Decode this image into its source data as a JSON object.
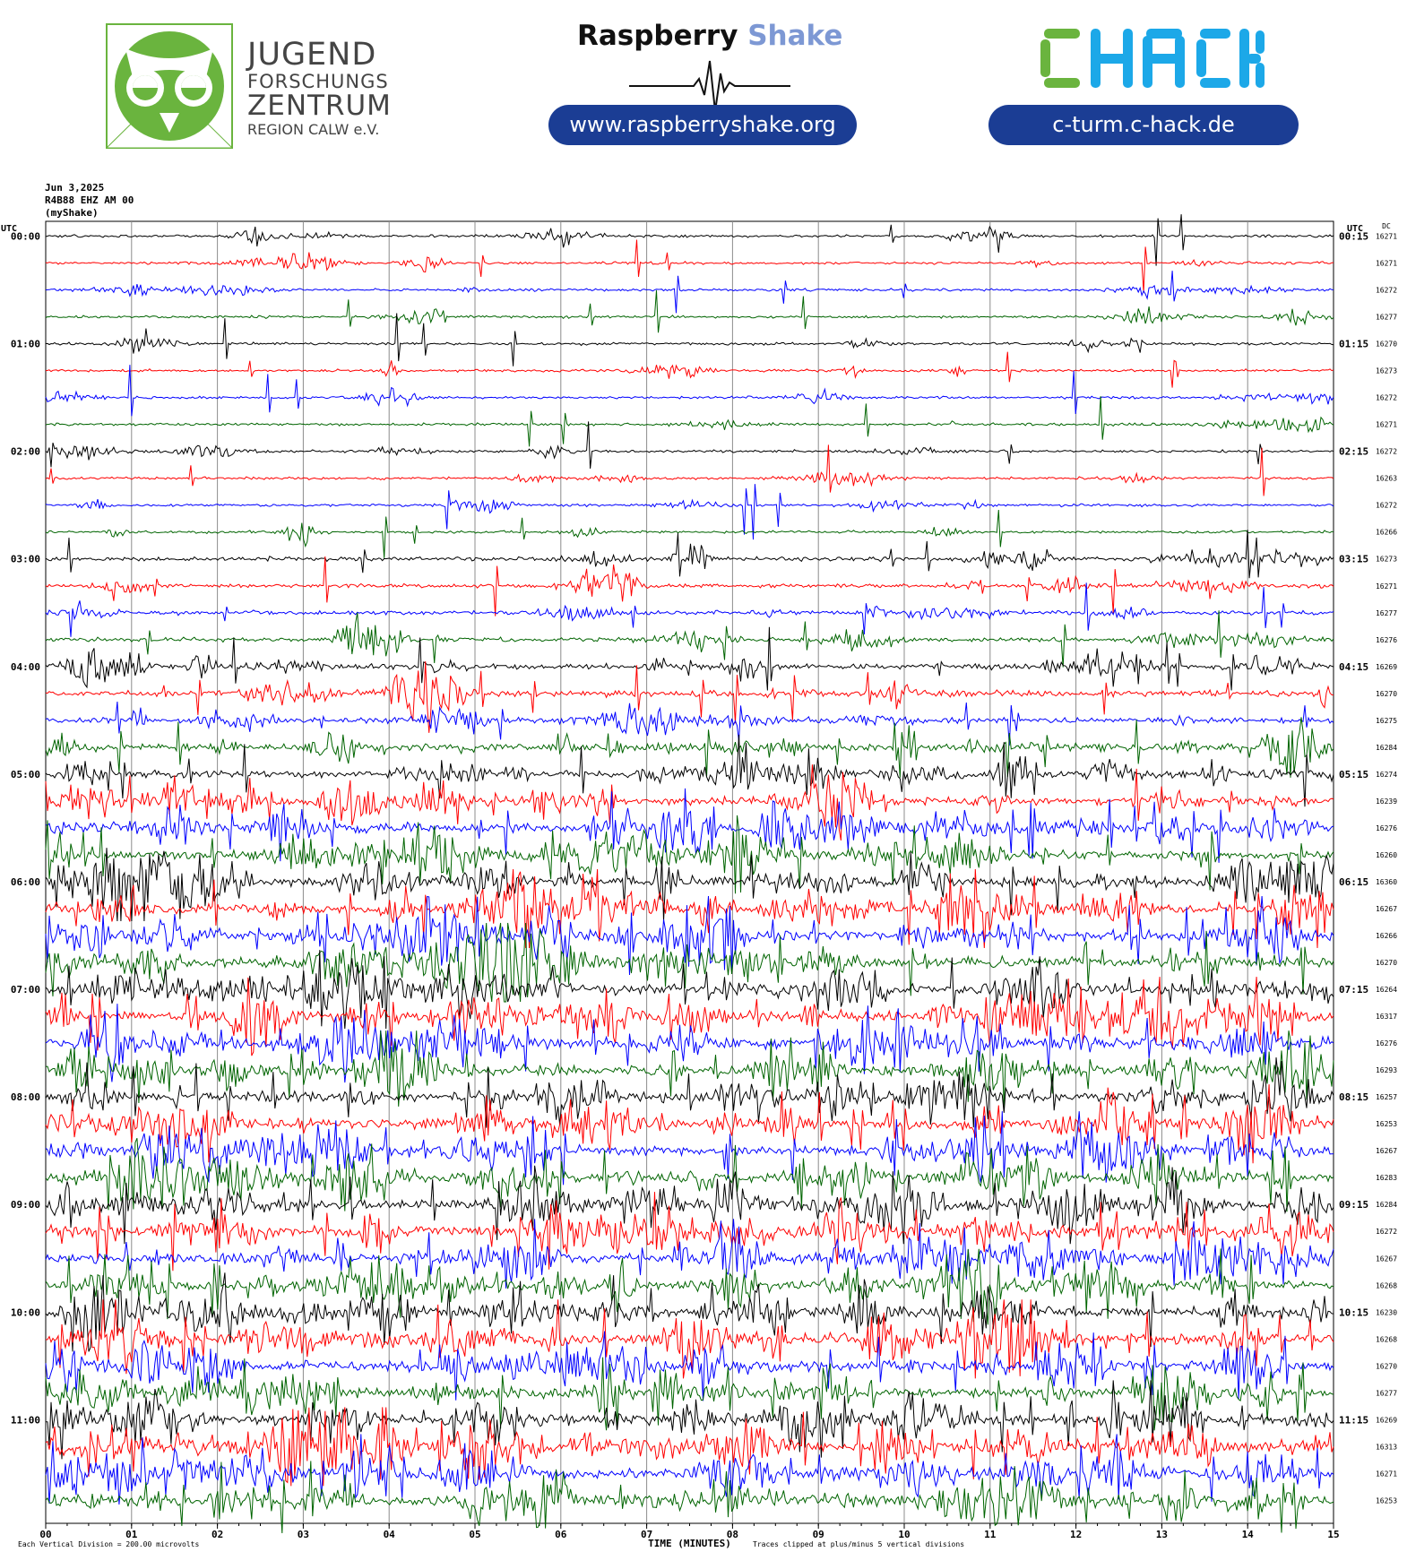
{
  "header": {
    "jfz": {
      "line1": "JUGEND",
      "line2": "FORSCHUNGS",
      "line3": "ZENTRUM",
      "line4": "REGION CALW e.V."
    },
    "raspberryshake": {
      "brand1": "Raspberry",
      "brand2": "Shake",
      "url": "www.raspberryshake.org"
    },
    "chack": {
      "logo_text": "CHACK",
      "url": "c-turm.c-hack.de"
    }
  },
  "helicorder": {
    "date": "Jun 3,2025",
    "station": "R4B88 EHZ AM 00",
    "source": "(myShake)"
  },
  "chart_data": {
    "type": "line",
    "title": "",
    "xlabel": "TIME (MINUTES)",
    "left_axis_title": "UTC",
    "right_axis_title": "UTC",
    "dc_title": "DC",
    "xlim": [
      0,
      15
    ],
    "x_ticks": [
      "00",
      "01",
      "02",
      "03",
      "04",
      "05",
      "06",
      "07",
      "08",
      "09",
      "10",
      "11",
      "12",
      "13",
      "14",
      "15"
    ],
    "left_hour_labels": [
      "00:00",
      "01:00",
      "02:00",
      "03:00",
      "04:00",
      "05:00",
      "06:00",
      "07:00",
      "08:00",
      "09:00",
      "10:00",
      "11:00"
    ],
    "right_hour_labels": [
      "00:15",
      "01:15",
      "02:15",
      "03:15",
      "04:15",
      "05:15",
      "06:15",
      "07:15",
      "08:15",
      "09:15",
      "10:15",
      "11:15"
    ],
    "dc_offsets": [
      16271,
      16271,
      16272,
      16277,
      16270,
      16273,
      16272,
      16271,
      16272,
      16263,
      16272,
      16266,
      16273,
      16271,
      16277,
      16276,
      16269,
      16270,
      16275,
      16284,
      16274,
      16239,
      16276,
      16260,
      16360,
      16267,
      16266,
      16270,
      16264,
      16317,
      16276,
      16293,
      16257,
      16253,
      16267,
      16283,
      16284,
      16272,
      16267,
      16268,
      16230,
      16268,
      16270,
      16277,
      16269,
      16313,
      16271,
      16253
    ],
    "trace_colors": [
      "#000000",
      "#ff0000",
      "#0000ff",
      "#006400"
    ],
    "noise_level": [
      1,
      1,
      1,
      1,
      1,
      1,
      1,
      1,
      1,
      1,
      1,
      1,
      2,
      2,
      2,
      2,
      3,
      3,
      3,
      4,
      4,
      5,
      5,
      5,
      6,
      6,
      6,
      6,
      6,
      6,
      6,
      6,
      6,
      6,
      6,
      6,
      6,
      6,
      6,
      6,
      6,
      6,
      6,
      6,
      6,
      7,
      6,
      6
    ],
    "footer_left": "Each Vertical Division = 200.00 microvolts",
    "footer_right": "Traces clipped at plus/minus 5 vertical divisions"
  }
}
